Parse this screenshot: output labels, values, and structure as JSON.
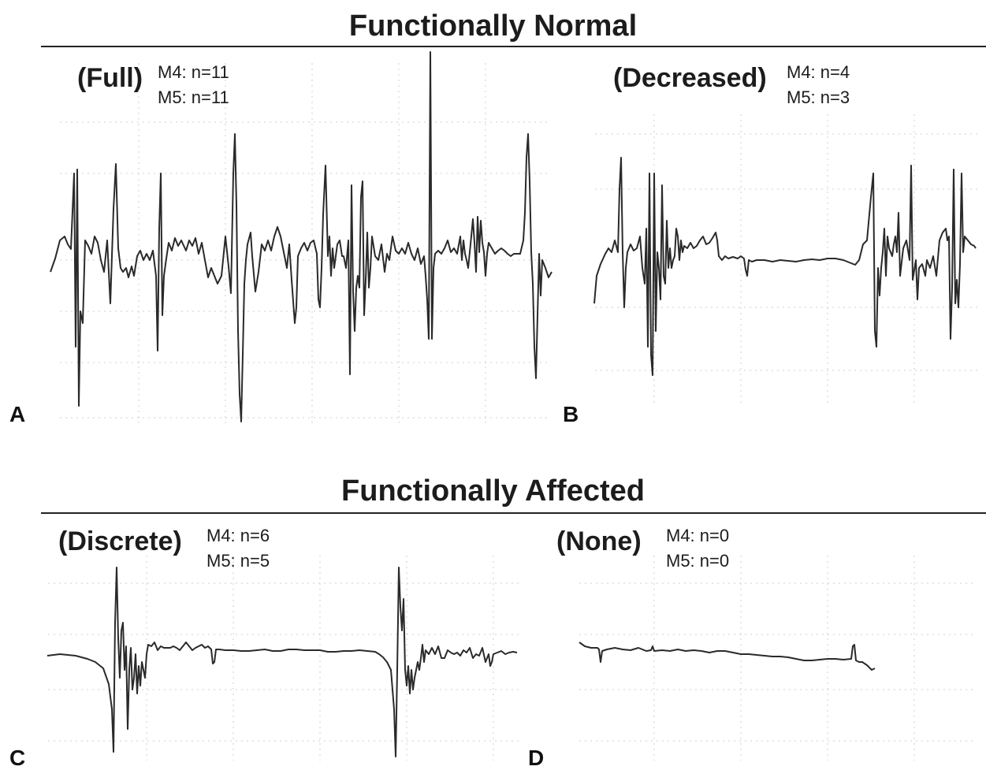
{
  "sections": {
    "normal": {
      "title": "Functionally Normal"
    },
    "affected": {
      "title": "Functionally Affected"
    }
  },
  "panels": {
    "a": {
      "letter": "A",
      "condition": "(Full)",
      "m4": "M4: n=11",
      "m5": "M5: n=11"
    },
    "b": {
      "letter": "B",
      "condition": "(Decreased)",
      "m4": "M4: n=4",
      "m5": "M5: n=3"
    },
    "c": {
      "letter": "C",
      "condition": "(Discrete)",
      "m4": "M4: n=6",
      "m5": "M5: n=5"
    },
    "d": {
      "letter": "D",
      "condition": "(None)",
      "m4": "M4: n=0",
      "m5": "M5: n=0"
    }
  },
  "colors": {
    "trace": "#2a2a2a",
    "grid": "#cfcfcf",
    "rule": "#222222"
  }
}
